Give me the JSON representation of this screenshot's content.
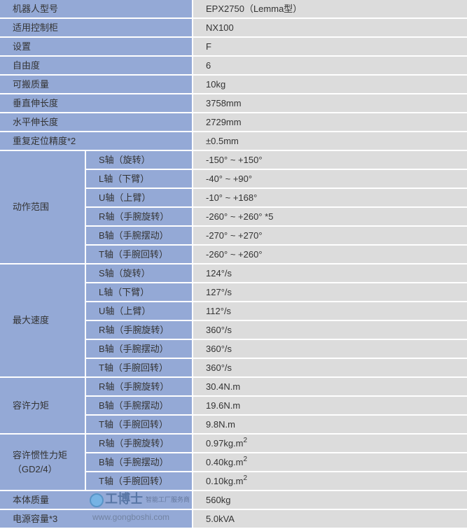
{
  "colors": {
    "label_bg": "#94a9d6",
    "value_bg": "#dcdcdc",
    "border": "#ffffff",
    "text": "#333333"
  },
  "simple_rows": [
    {
      "label": "机器人型号",
      "value": "EPX2750（Lemma型）"
    },
    {
      "label": "适用控制柜",
      "value": "NX100"
    },
    {
      "label": "设置",
      "value": "F"
    },
    {
      "label": "自由度",
      "value": "6"
    },
    {
      "label": "可搬质量",
      "value": "10kg"
    },
    {
      "label": "垂直伸长度",
      "value": "3758mm"
    },
    {
      "label": "水平伸长度",
      "value": "2729mm"
    },
    {
      "label": "重复定位精度*2",
      "value": "±0.5mm"
    }
  ],
  "groups": [
    {
      "label": "动作范围",
      "rows": [
        {
          "axis": "S轴（旋转）",
          "value": "-150° ~ +150°"
        },
        {
          "axis": "L轴（下臂）",
          "value": "-40° ~ +90°"
        },
        {
          "axis": "U轴（上臂）",
          "value": "-10° ~ +168°"
        },
        {
          "axis": "R轴（手腕旋转）",
          "value": "-260° ~ +260° *5"
        },
        {
          "axis": "B轴（手腕摆动）",
          "value": "-270° ~ +270°"
        },
        {
          "axis": "T轴（手腕回转）",
          "value": "-260° ~ +260°"
        }
      ]
    },
    {
      "label": "最大速度",
      "rows": [
        {
          "axis": "S轴（旋转）",
          "value": "124°/s"
        },
        {
          "axis": "L轴（下臂）",
          "value": "127°/s"
        },
        {
          "axis": "U轴（上臂）",
          "value": "112°/s"
        },
        {
          "axis": "R轴（手腕旋转）",
          "value": "360°/s"
        },
        {
          "axis": "B轴（手腕摆动）",
          "value": "360°/s"
        },
        {
          "axis": "T轴（手腕回转）",
          "value": "360°/s"
        }
      ]
    },
    {
      "label": "容许力矩",
      "rows": [
        {
          "axis": "R轴（手腕旋转）",
          "value": "30.4N.m"
        },
        {
          "axis": "B轴（手腕摆动）",
          "value": "19.6N.m"
        },
        {
          "axis": "T轴（手腕回转）",
          "value": "9.8N.m"
        }
      ]
    },
    {
      "label": "容许惯性力矩（GD2/4）",
      "rows": [
        {
          "axis": "R轴（手腕旋转）",
          "value": "0.97kg.m",
          "sup": "2"
        },
        {
          "axis": "B轴（手腕摆动）",
          "value": "0.40kg.m",
          "sup": "2"
        },
        {
          "axis": "T轴（手腕回转）",
          "value": "0.10kg.m",
          "sup": "2"
        }
      ]
    }
  ],
  "bottom_rows": [
    {
      "label": "本体质量",
      "value": "560kg"
    },
    {
      "label": "电源容量*3",
      "value": "5.0kVA"
    }
  ],
  "watermark": {
    "name": "工博士",
    "tagline": "智能工厂服务商",
    "url": "www.gongboshi.com"
  }
}
